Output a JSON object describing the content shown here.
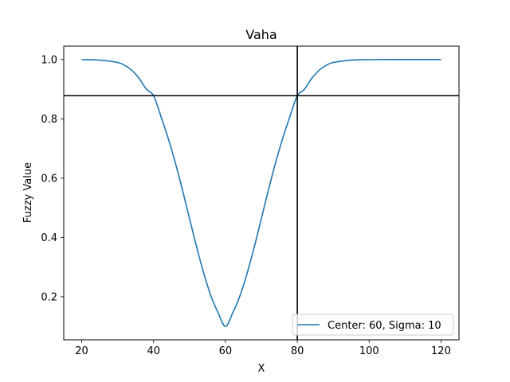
{
  "chart_data": {
    "type": "line",
    "title": "Vaha",
    "xlabel": "X",
    "ylabel": "Fuzzy Value",
    "xlim": [
      15,
      125
    ],
    "ylim": [
      0.055,
      1.045
    ],
    "xticks": [
      20,
      40,
      60,
      80,
      100,
      120
    ],
    "yticks": [
      0.2,
      0.4,
      0.6,
      0.8,
      1.0
    ],
    "xtick_labels": [
      "20",
      "40",
      "60",
      "80",
      "100",
      "120"
    ],
    "ytick_labels": [
      "0.2",
      "0.4",
      "0.6",
      "0.8",
      "1.0"
    ],
    "grid": false,
    "legend_placement": "lower-right",
    "series": [
      {
        "name": "Center: 60, Sigma: 10",
        "color": "#1f77b4",
        "x": [
          20,
          25,
          30,
          32,
          34,
          36,
          38,
          40,
          42,
          44,
          46,
          48,
          50,
          52,
          54,
          56,
          58,
          60,
          62,
          64,
          66,
          68,
          70,
          72,
          74,
          76,
          78,
          80,
          82,
          84,
          86,
          88,
          90,
          95,
          100,
          110,
          120
        ],
        "values": [
          0.9997,
          0.998,
          0.99,
          0.98,
          0.963,
          0.936,
          0.9,
          0.878,
          0.81,
          0.737,
          0.654,
          0.562,
          0.464,
          0.367,
          0.278,
          0.202,
          0.145,
          0.1,
          0.145,
          0.202,
          0.278,
          0.367,
          0.464,
          0.562,
          0.654,
          0.737,
          0.81,
          0.878,
          0.9,
          0.936,
          0.963,
          0.98,
          0.99,
          0.998,
          0.9997,
          1.0,
          1.0
        ]
      }
    ],
    "reference_lines": {
      "vertical_x": 80,
      "horizontal_y": 0.878,
      "color": "#000000"
    }
  }
}
